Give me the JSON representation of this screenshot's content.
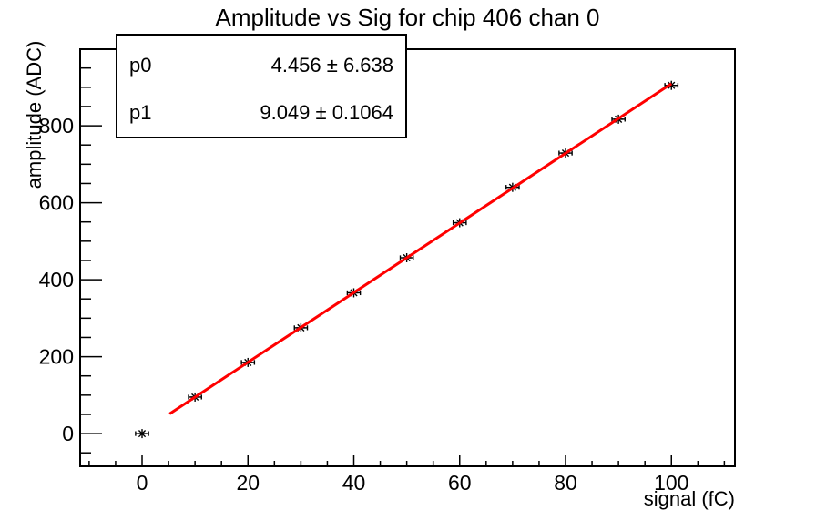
{
  "chart_data": {
    "type": "scatter",
    "title": "Amplitude vs Sig for chip 406 chan 0",
    "xlabel": "signal (fC)",
    "ylabel": "amplitude (ADC)",
    "x": [
      0,
      10,
      20,
      30,
      40,
      50,
      60,
      70,
      80,
      90,
      100
    ],
    "y": [
      0,
      95,
      185,
      275,
      366,
      457,
      548,
      640,
      729,
      817,
      905
    ],
    "x_err": 1.2,
    "xlim": [
      -11.7,
      112
    ],
    "ylim": [
      -85,
      999
    ],
    "x_major_ticks": [
      0,
      20,
      40,
      60,
      80,
      100
    ],
    "x_minor_step": 5,
    "x_minor_range": [
      -10,
      110
    ],
    "y_major_ticks": [
      0,
      200,
      400,
      600,
      800
    ],
    "y_minor_step": 50,
    "y_minor_range": [
      -50,
      950
    ],
    "grid": false,
    "marker": "asterisk",
    "colors": {
      "marker": "#000000",
      "fit_line": "#ff0000",
      "frame": "#000000",
      "background": "#ffffff",
      "text": "#000000"
    },
    "fit": {
      "type": "linear",
      "p0": 4.456,
      "p0_err": 6.638,
      "p1": 9.049,
      "p1_err": 0.1064,
      "x_range": [
        5.2,
        100
      ]
    }
  },
  "stats_box": {
    "rows": [
      {
        "param": "p0",
        "value": "4.456 ± 6.638"
      },
      {
        "param": "p1",
        "value": "9.049 ± 0.1064"
      }
    ]
  }
}
